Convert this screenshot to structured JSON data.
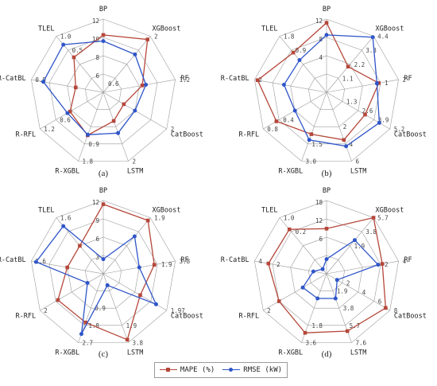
{
  "chart_data": [
    {
      "type": "radar",
      "panel_label": "(a)",
      "axes": [
        "BP",
        "XGBoost",
        "RF",
        "CatBoost",
        "LSTM",
        "R-XGBL",
        "R-RFL",
        "R-CatBL",
        "TLEL"
      ],
      "series": [
        {
          "name": "MAPE (%)",
          "values": [
            9.4,
            11.3,
            6.5,
            3.9,
            5.0,
            7.5,
            6.3,
            4.6,
            7.5
          ]
        },
        {
          "name": "RMSE (kW)",
          "values": [
            8.4,
            8.1,
            7.1,
            6.0,
            7.1,
            7.4,
            6.8,
            10.0,
            10.2
          ]
        }
      ],
      "tick_labels": [
        {
          "axis": "BP",
          "values": [
            "12",
            "10",
            "8",
            "6"
          ]
        },
        {
          "axis": "XGBoost",
          "values": [
            "2"
          ]
        },
        {
          "axis": "RF",
          "values": [
            "1.2"
          ]
        },
        {
          "axis": "CatBoost",
          "values": [
            "2"
          ]
        },
        {
          "axis": "LSTM",
          "values": [
            "2"
          ]
        },
        {
          "axis": "R-XGBL",
          "values": [
            "1.8",
            "0.9"
          ]
        },
        {
          "axis": "R-RFL",
          "values": [
            "1.2",
            "0.6"
          ]
        },
        {
          "axis": "R-CatBL",
          "values": [
            "0.9"
          ]
        },
        {
          "axis": "TLEL",
          "values": [
            "1.0",
            "0.5"
          ]
        },
        {
          "axis": "inner",
          "values": [
            "0.6"
          ]
        }
      ]
    },
    {
      "type": "radar",
      "panel_label": "(b)",
      "axes": [
        "BP",
        "XGBoost",
        "RF",
        "CatBoost",
        "LSTM",
        "R-XGBL",
        "R-RFL",
        "R-CatBL",
        "TLEL"
      ],
      "series": [
        {
          "name": "MAPE (%)",
          "values": [
            11.4,
            5.5,
            8.7,
            7.3,
            8.3,
            7.3,
            9.5,
            11.5,
            8.5
          ]
        },
        {
          "name": "RMSE (kW)",
          "values": [
            9.4,
            11.8,
            8.4,
            10.0,
            9.4,
            8.3,
            6.0,
            7.1,
            6.9
          ]
        }
      ],
      "tick_labels": [
        {
          "axis": "BP",
          "values": [
            "12",
            "8",
            "4"
          ]
        },
        {
          "axis": "XGBoost",
          "values": [
            "4.4",
            "3.3",
            "2.2",
            "1.1"
          ]
        },
        {
          "axis": "RF",
          "values": [
            "2",
            "1"
          ]
        },
        {
          "axis": "CatBoost",
          "values": [
            "5.2",
            "3.9",
            "2.6",
            "1.3"
          ]
        },
        {
          "axis": "LSTM",
          "values": [
            "6",
            "4",
            "2"
          ]
        },
        {
          "axis": "R-XGBL",
          "values": [
            "3.0",
            "1.5"
          ]
        },
        {
          "axis": "R-RFL",
          "values": [
            "0.8",
            "0.4"
          ]
        },
        {
          "axis": "R-CatBL",
          "values": [
            "2"
          ]
        },
        {
          "axis": "TLEL",
          "values": [
            "1.8",
            "0.9"
          ]
        }
      ]
    },
    {
      "type": "radar",
      "panel_label": "(c)",
      "axes": [
        "BP",
        "XGBoost",
        "RF",
        "CatBoost",
        "LSTM",
        "R-XGBL",
        "R-RFL",
        "R-CatBL",
        "TLEL"
      ],
      "series": [
        {
          "name": "MAPE (%)",
          "values": [
            11.4,
            11.4,
            8.5,
            7.0,
            11.5,
            8.5,
            8.6,
            6.0,
            6.0
          ]
        },
        {
          "name": "RMSE (kW)",
          "values": [
            2.4,
            8.0,
            6.0,
            10.0,
            2.0,
            10.5,
            3.0,
            11.2,
            10.2
          ]
        }
      ],
      "tick_labels": [
        {
          "axis": "BP",
          "values": [
            "12",
            "9",
            "6",
            "3"
          ]
        },
        {
          "axis": "XGBoost",
          "values": [
            "1.9"
          ]
        },
        {
          "axis": "RF",
          "values": [
            "3.8",
            "1.9"
          ]
        },
        {
          "axis": "CatBoost",
          "values": [
            "1.97"
          ]
        },
        {
          "axis": "LSTM",
          "values": [
            "3.8",
            "1.9"
          ]
        },
        {
          "axis": "R-XGBL",
          "values": [
            "2.7",
            "1.8",
            "0.9"
          ]
        },
        {
          "axis": "R-RFL",
          "values": [
            "2"
          ]
        },
        {
          "axis": "R-CatBL",
          "values": [
            "1.6"
          ]
        },
        {
          "axis": "TLEL",
          "values": [
            "1.6"
          ]
        }
      ]
    },
    {
      "type": "radar",
      "panel_label": "(d)",
      "axes": [
        "BP",
        "XGBoost",
        "RF",
        "CatBoost",
        "LSTM",
        "R-XGBL",
        "R-RFL",
        "R-CatBL",
        "TLEL"
      ],
      "series": [
        {
          "name": "MAPE (%)",
          "values": [
            7.4,
            12.0,
            9.3,
            11.2,
            10.0,
            10.3,
            9.0,
            9.7,
            9.5
          ]
        },
        {
          "name": "RMSE (kW)",
          "values": [
            2.4,
            7.2,
            8.6,
            2.0,
            4.3,
            4.3,
            4.5,
            2.2,
            1.0
          ]
        }
      ],
      "tick_labels": [
        {
          "axis": "BP",
          "values": [
            "18",
            "12",
            "6"
          ]
        },
        {
          "axis": "XGBoost",
          "values": [
            "5.7",
            "3.8",
            "1.9"
          ]
        },
        {
          "axis": "RF",
          "values": [
            "4",
            "2"
          ]
        },
        {
          "axis": "CatBoost",
          "values": [
            "8",
            "6",
            "4",
            "2"
          ]
        },
        {
          "axis": "LSTM",
          "values": [
            "7.6",
            "5.7",
            "3.8",
            "1.9"
          ]
        },
        {
          "axis": "R-XGBL",
          "values": [
            "3.6",
            "1.8"
          ]
        },
        {
          "axis": "R-RFL",
          "values": [
            "2"
          ]
        },
        {
          "axis": "R-CatBL",
          "values": [
            "4",
            "2"
          ]
        },
        {
          "axis": "TLEL",
          "values": [
            "1.0",
            "0.2"
          ]
        }
      ]
    }
  ],
  "legend": {
    "items": [
      {
        "name": "MAPE (%)",
        "color": "#b5473a",
        "marker": "square"
      },
      {
        "name": "RMSE (kW)",
        "color": "#2f55c9",
        "marker": "circle"
      }
    ],
    "placement": "bottom-center"
  },
  "colors": {
    "mape": "#b5473a",
    "rmse": "#2f55c9",
    "grid": "#9a9a9a",
    "text": "#222222"
  }
}
